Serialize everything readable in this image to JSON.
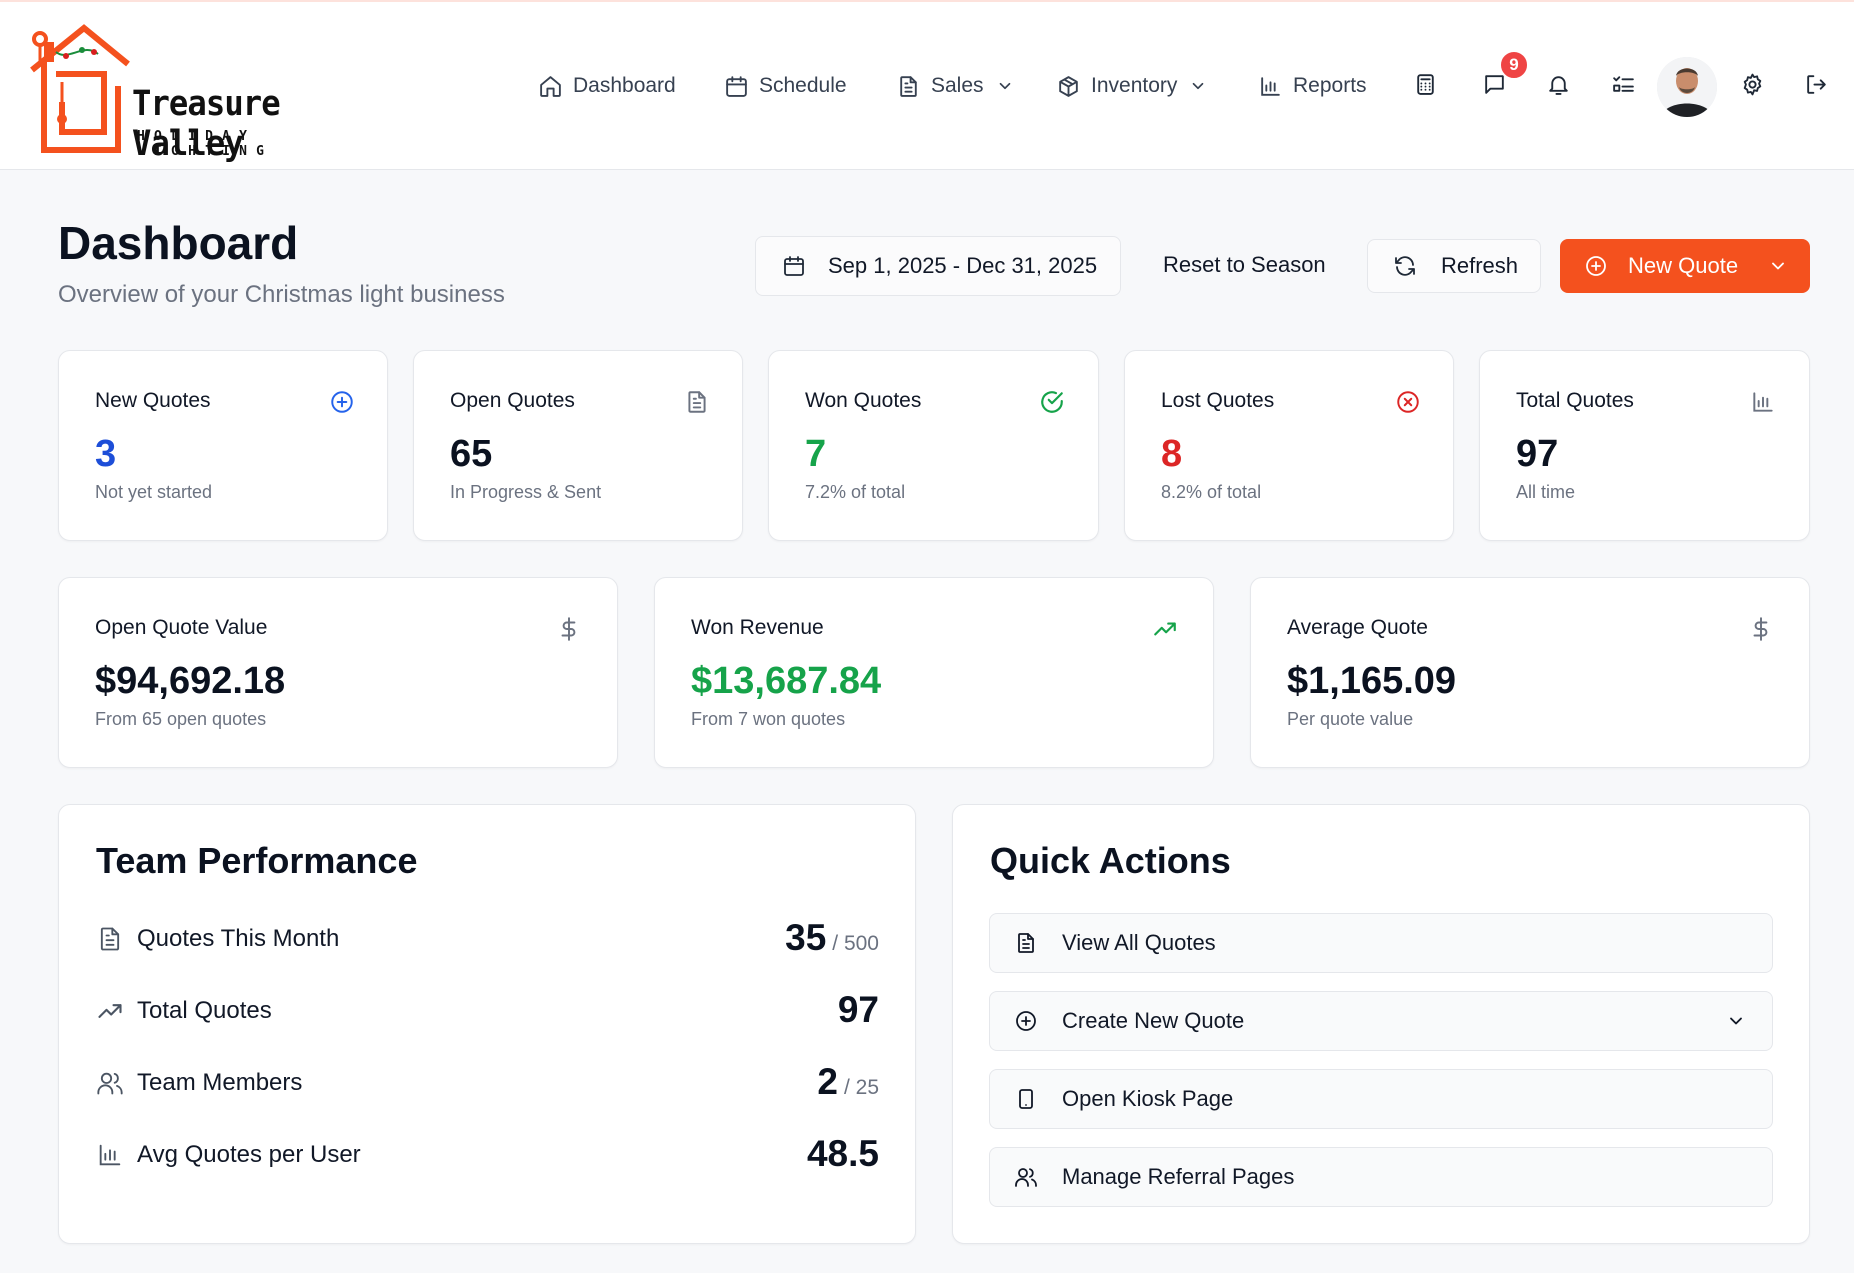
{
  "brand": {
    "name": "Treasure Valley",
    "tagline": "HOLIDAY LIGHTING",
    "accent": "#f4511e"
  },
  "nav": {
    "items": [
      {
        "label": "Dashboard",
        "icon": "home-icon"
      },
      {
        "label": "Schedule",
        "icon": "calendar-icon"
      },
      {
        "label": "Sales",
        "icon": "document-icon",
        "dropdown": true
      },
      {
        "label": "Inventory",
        "icon": "box-icon",
        "dropdown": true
      },
      {
        "label": "Reports",
        "icon": "bar-chart-icon"
      }
    ],
    "message_badge": "9"
  },
  "page": {
    "title": "Dashboard",
    "subtitle": "Overview of your Christmas light business",
    "date_range": "Sep 1, 2025 - Dec 31, 2025",
    "reset_label": "Reset to Season",
    "refresh_label": "Refresh",
    "new_quote_label": "New Quote"
  },
  "stats": [
    {
      "label": "New Quotes",
      "value": "3",
      "sub": "Not yet started",
      "color": "#1d4ed8",
      "icon": "plus-circle-icon"
    },
    {
      "label": "Open Quotes",
      "value": "65",
      "sub": "In Progress & Sent",
      "color": "#0b1220",
      "icon": "document-icon"
    },
    {
      "label": "Won Quotes",
      "value": "7",
      "sub": "7.2% of total",
      "color": "#16a34a",
      "icon": "check-circle-icon"
    },
    {
      "label": "Lost Quotes",
      "value": "8",
      "sub": "8.2% of total",
      "color": "#dc2626",
      "icon": "x-circle-icon"
    },
    {
      "label": "Total Quotes",
      "value": "97",
      "sub": "All time",
      "color": "#0b1220",
      "icon": "bar-chart-icon"
    }
  ],
  "money": [
    {
      "label": "Open Quote Value",
      "value": "$94,692.18",
      "sub": "From 65 open quotes",
      "color": "#0b1220",
      "icon": "dollar-icon"
    },
    {
      "label": "Won Revenue",
      "value": "$13,687.84",
      "sub": "From 7 won quotes",
      "color": "#16a34a",
      "icon": "trending-up-icon"
    },
    {
      "label": "Average Quote",
      "value": "$1,165.09",
      "sub": "Per quote value",
      "color": "#0b1220",
      "icon": "dollar-icon"
    }
  ],
  "team": {
    "title": "Team Performance",
    "rows": [
      {
        "label": "Quotes This Month",
        "value": "35",
        "of": "/ 500",
        "icon": "document-icon"
      },
      {
        "label": "Total Quotes",
        "value": "97",
        "of": "",
        "icon": "trending-up-icon"
      },
      {
        "label": "Team Members",
        "value": "2",
        "of": "/ 25",
        "icon": "users-icon"
      },
      {
        "label": "Avg Quotes per User",
        "value": "48.5",
        "of": "",
        "icon": "bar-chart-icon"
      }
    ]
  },
  "quick": {
    "title": "Quick Actions",
    "actions": [
      {
        "label": "View All Quotes",
        "icon": "document-icon"
      },
      {
        "label": "Create New Quote",
        "icon": "plus-circle-icon",
        "dropdown": true
      },
      {
        "label": "Open Kiosk Page",
        "icon": "tablet-icon"
      },
      {
        "label": "Manage Referral Pages",
        "icon": "users-icon"
      }
    ]
  }
}
